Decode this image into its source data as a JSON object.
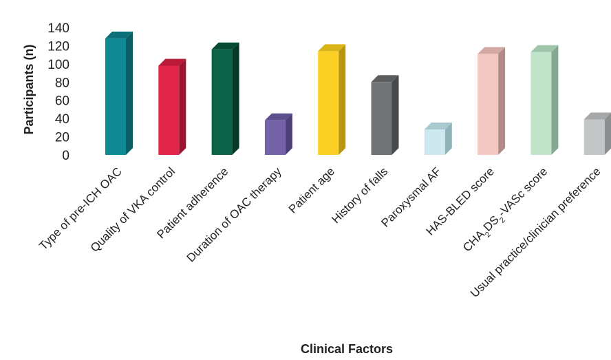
{
  "chart_data": {
    "type": "bar",
    "style": "3d",
    "xlabel": "Clinical Factors",
    "ylabel": "Participants (n)",
    "ylim": [
      0,
      140
    ],
    "yticks": [
      "0",
      "20",
      "40",
      "60",
      "80",
      "100",
      "120",
      "140"
    ],
    "grid": false,
    "categories": [
      "Type of pre-ICH OAC",
      "Quality of VKA control",
      "Patient adherence",
      "Duration of OAC therapy",
      "Patient age",
      "History of falls",
      "Paroxysmal AF",
      "HAS-BLED score",
      "CHA2DS2-VASc score",
      "Usual practice/clinician preference"
    ],
    "values": [
      128,
      98,
      116,
      38,
      114,
      80,
      28,
      111,
      113,
      39
    ],
    "colors": [
      "#0f8a94",
      "#e2264a",
      "#0b6448",
      "#7462a9",
      "#fcd024",
      "#717476",
      "#cde7ee",
      "#f4c8c3",
      "#bfe4ca",
      "#c4c6c8"
    ],
    "side_colors": [
      "#0a5e66",
      "#9c1430",
      "#053826",
      "#4c3f78",
      "#b8960f",
      "#47494a",
      "#8fb3bb",
      "#b38a86",
      "#86a893",
      "#8c8e8f"
    ],
    "top_colors": [
      "#0c707a",
      "#b81b3a",
      "#074b35",
      "#5d4f8e",
      "#d9b31a",
      "#5b5d5f",
      "#a9c8cf",
      "#d2a9a5",
      "#9fc5ab",
      "#a6a8aa"
    ]
  }
}
